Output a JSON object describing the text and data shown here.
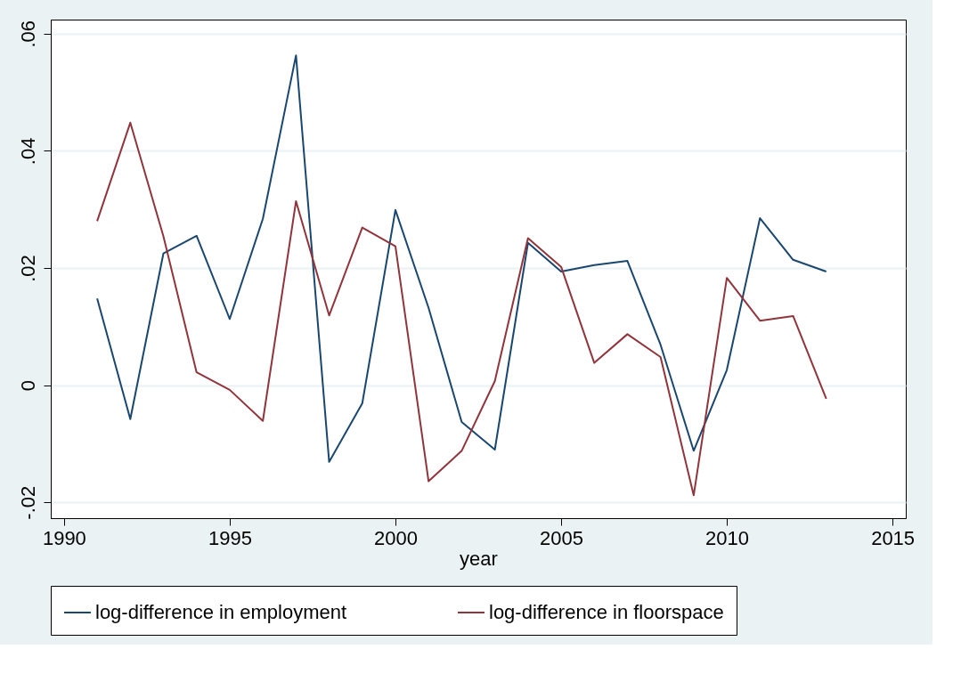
{
  "chart_data": {
    "type": "line",
    "xlabel": "year",
    "x": [
      1991,
      1992,
      1993,
      1994,
      1995,
      1996,
      1997,
      1998,
      1999,
      2000,
      2001,
      2002,
      2003,
      2004,
      2005,
      2006,
      2007,
      2008,
      2009,
      2010,
      2011,
      2012,
      2013
    ],
    "series": [
      {
        "name": "log-difference in employment",
        "color": "#1a476f",
        "values": [
          0.0148,
          -0.0058,
          0.0225,
          0.0255,
          0.0113,
          0.0284,
          0.0563,
          -0.0131,
          -0.0031,
          0.0299,
          0.0132,
          -0.0063,
          -0.011,
          0.0243,
          0.0194,
          0.0205,
          0.0212,
          0.0069,
          -0.0112,
          0.0026,
          0.0285,
          0.0214,
          0.0194
        ]
      },
      {
        "name": "log-difference in floorspace",
        "color": "#90353b",
        "values": [
          0.028,
          0.0448,
          0.0254,
          0.0022,
          -0.0008,
          -0.0061,
          0.0314,
          0.0119,
          0.0269,
          0.0237,
          -0.0164,
          -0.0112,
          0.0007,
          0.0251,
          0.0202,
          0.0038,
          0.0087,
          0.0048,
          -0.0188,
          0.0183,
          0.011,
          0.0118,
          -0.0023
        ]
      }
    ],
    "xlim": [
      1989.6,
      2015.4
    ],
    "xticks": [
      1990,
      1995,
      2000,
      2005,
      2010,
      2015
    ],
    "ylim": [
      -0.0227,
      0.0624
    ],
    "yticks": [
      {
        "value": -0.02,
        "label": "-.02"
      },
      {
        "value": 0,
        "label": "0"
      },
      {
        "value": 0.02,
        "label": ".02"
      },
      {
        "value": 0.04,
        "label": ".04"
      },
      {
        "value": 0.06,
        "label": ".06"
      }
    ],
    "grid": "y",
    "legend": "bottom",
    "marker": "none",
    "line_style": "solid"
  }
}
